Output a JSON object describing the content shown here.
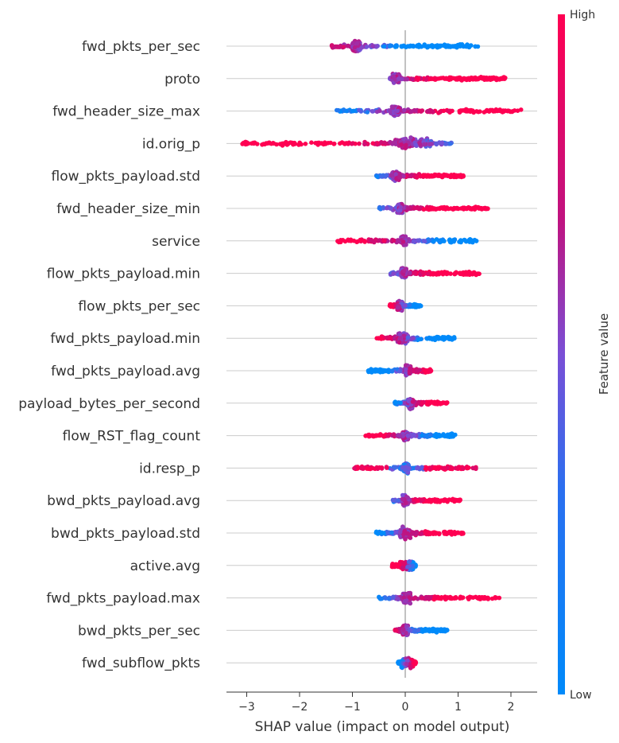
{
  "chart_data": {
    "type": "scatter",
    "subtype": "shap-beeswarm",
    "xlabel": "SHAP value (impact on model output)",
    "xlim": [
      -3.4,
      2.5
    ],
    "xticks": [
      -3,
      -2,
      -1,
      0,
      1,
      2
    ],
    "xtick_labels": [
      "−3",
      "−2",
      "−1",
      "0",
      "1",
      "2"
    ],
    "grid": "horizontal row lines and x=0 reference line",
    "colorbar": {
      "label": "Feature value",
      "high_label": "High",
      "low_label": "Low",
      "colors": [
        "#008afa",
        "#7a4fd6",
        "#c0127f",
        "#ff0052"
      ],
      "placement": "right"
    },
    "features": [
      {
        "name": "fwd_pkts_per_sec",
        "range": [
          -1.4,
          1.4
        ],
        "core": [
          -1.0,
          -0.85
        ],
        "high_side": "negative"
      },
      {
        "name": "proto",
        "range": [
          -0.3,
          1.9
        ],
        "core": [
          -0.25,
          -0.1
        ],
        "high_side": "positive"
      },
      {
        "name": "fwd_header_size_max",
        "range": [
          -1.3,
          2.2
        ],
        "core": [
          -0.25,
          -0.1
        ],
        "high_side": "positive"
      },
      {
        "name": "id.orig_p",
        "range": [
          -3.1,
          0.9
        ],
        "core": [
          -0.2,
          0.5
        ],
        "high_side": "negative"
      },
      {
        "name": "flow_pkts_payload.std",
        "range": [
          -0.55,
          1.1
        ],
        "core": [
          -0.25,
          -0.1
        ],
        "high_side": "positive"
      },
      {
        "name": "fwd_header_size_min",
        "range": [
          -0.5,
          1.6
        ],
        "core": [
          -0.15,
          -0.05
        ],
        "high_side": "positive"
      },
      {
        "name": "service",
        "range": [
          -1.3,
          1.4
        ],
        "core": [
          -0.08,
          0.02
        ],
        "high_side": "negative"
      },
      {
        "name": "flow_pkts_payload.min",
        "range": [
          -0.3,
          1.4
        ],
        "core": [
          -0.08,
          0.02
        ],
        "high_side": "positive"
      },
      {
        "name": "flow_pkts_per_sec",
        "range": [
          -0.3,
          0.3
        ],
        "core": [
          -0.15,
          -0.05
        ],
        "high_side": "negative"
      },
      {
        "name": "fwd_pkts_payload.min",
        "range": [
          -0.55,
          0.95
        ],
        "core": [
          -0.15,
          0.05
        ],
        "high_side": "negative"
      },
      {
        "name": "fwd_pkts_payload.avg",
        "range": [
          -0.7,
          0.5
        ],
        "core": [
          0.0,
          0.1
        ],
        "high_side": "positive"
      },
      {
        "name": "payload_bytes_per_second",
        "range": [
          -0.2,
          0.8
        ],
        "core": [
          0.05,
          0.15
        ],
        "high_side": "positive"
      },
      {
        "name": "flow_RST_flag_count",
        "range": [
          -0.75,
          0.95
        ],
        "core": [
          -0.05,
          0.05
        ],
        "high_side": "negative"
      },
      {
        "name": "id.resp_p",
        "range": [
          -1.0,
          1.35
        ],
        "core": [
          -0.03,
          0.07
        ],
        "high_side": "mixed"
      },
      {
        "name": "bwd_pkts_payload.avg",
        "range": [
          -0.25,
          1.05
        ],
        "core": [
          -0.05,
          0.05
        ],
        "high_side": "positive"
      },
      {
        "name": "bwd_pkts_payload.std",
        "range": [
          -0.55,
          1.1
        ],
        "core": [
          -0.1,
          0.1
        ],
        "high_side": "positive"
      },
      {
        "name": "active.avg",
        "range": [
          -0.25,
          0.2
        ],
        "core": [
          -0.1,
          0.15
        ],
        "high_side": "negative"
      },
      {
        "name": "fwd_pkts_payload.max",
        "range": [
          -0.5,
          1.8
        ],
        "core": [
          -0.05,
          0.1
        ],
        "high_side": "positive"
      },
      {
        "name": "bwd_pkts_per_sec",
        "range": [
          -0.2,
          0.8
        ],
        "core": [
          -0.05,
          0.05
        ],
        "high_side": "negative"
      },
      {
        "name": "fwd_subflow_pkts",
        "range": [
          -0.15,
          0.2
        ],
        "core": [
          -0.08,
          0.15
        ],
        "high_side": "positive"
      }
    ]
  }
}
